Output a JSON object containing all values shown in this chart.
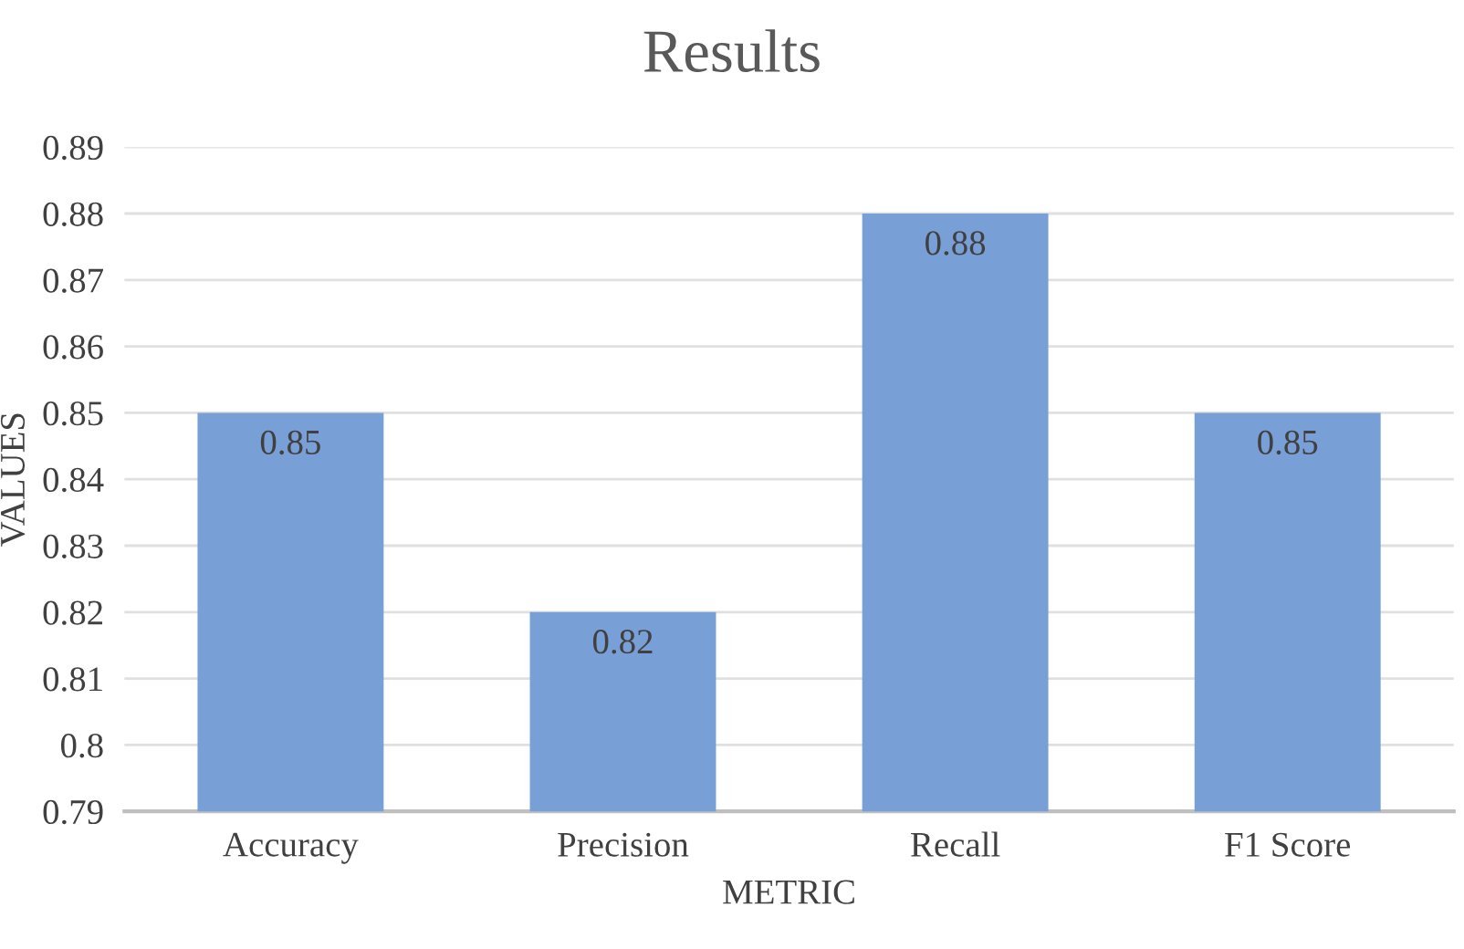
{
  "chart_data": {
    "type": "bar",
    "title": "Results",
    "xlabel": "METRIC",
    "ylabel": "VALUES",
    "categories": [
      "Accuracy",
      "Precision",
      "Recall",
      "F1 Score"
    ],
    "values": [
      0.85,
      0.82,
      0.88,
      0.85
    ],
    "color": "#789fd6",
    "ylim": [
      0.79,
      0.89
    ],
    "yticks": [
      0.79,
      0.8,
      0.81,
      0.82,
      0.83,
      0.84,
      0.85,
      0.86,
      0.87,
      0.88,
      0.89
    ],
    "grid": "y",
    "data_labels": true
  }
}
